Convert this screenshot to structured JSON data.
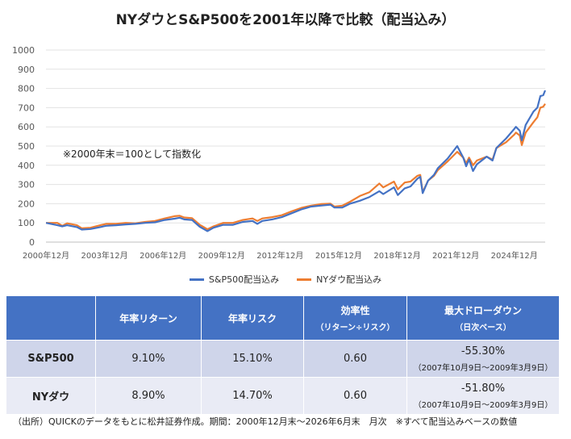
{
  "title": "NYダウとS&P500を2001年以降で比較（配当込み）",
  "note": "※2000年末＝100として指数化",
  "colors": {
    "sp500": "#4472c4",
    "nydow": "#ed7d31",
    "header": "#4472c4"
  },
  "chart_data": {
    "type": "line",
    "title": "NYダウとS&P500を2001年以降で比較（配当込み）",
    "xlabel": "",
    "ylabel": "",
    "ylim": [
      0,
      1000
    ],
    "yticks": [
      0,
      100,
      200,
      300,
      400,
      500,
      600,
      700,
      800,
      900,
      1000
    ],
    "xlim": [
      2000.917,
      2026.5
    ],
    "xticks": [
      {
        "value": 2000.917,
        "label": "2000年12月"
      },
      {
        "value": 2003.917,
        "label": "2003年12月"
      },
      {
        "value": 2006.917,
        "label": "2006年12月"
      },
      {
        "value": 2009.917,
        "label": "2009年12月"
      },
      {
        "value": 2012.917,
        "label": "2012年12月"
      },
      {
        "value": 2015.917,
        "label": "2015年12月"
      },
      {
        "value": 2018.917,
        "label": "2018年12月"
      },
      {
        "value": 2021.917,
        "label": "2021年12月"
      },
      {
        "value": 2024.917,
        "label": "2024年12月"
      }
    ],
    "grid": true,
    "legend_position": "bottom",
    "series": [
      {
        "name": "S&P500配当込み",
        "color": "#4472c4",
        "points": [
          [
            2000.92,
            100
          ],
          [
            2001.5,
            88
          ],
          [
            2001.75,
            82
          ],
          [
            2002.0,
            88
          ],
          [
            2002.5,
            78
          ],
          [
            2002.75,
            65
          ],
          [
            2003.2,
            68
          ],
          [
            2003.7,
            78
          ],
          [
            2004.0,
            85
          ],
          [
            2004.5,
            88
          ],
          [
            2005.0,
            92
          ],
          [
            2005.5,
            95
          ],
          [
            2006.0,
            100
          ],
          [
            2006.5,
            103
          ],
          [
            2007.0,
            115
          ],
          [
            2007.5,
            122
          ],
          [
            2007.77,
            127
          ],
          [
            2008.0,
            118
          ],
          [
            2008.4,
            115
          ],
          [
            2008.8,
            80
          ],
          [
            2009.19,
            57
          ],
          [
            2009.5,
            75
          ],
          [
            2010.0,
            90
          ],
          [
            2010.5,
            90
          ],
          [
            2011.0,
            105
          ],
          [
            2011.5,
            110
          ],
          [
            2011.75,
            95
          ],
          [
            2012.0,
            110
          ],
          [
            2012.5,
            118
          ],
          [
            2013.0,
            130
          ],
          [
            2013.5,
            150
          ],
          [
            2014.0,
            170
          ],
          [
            2014.5,
            185
          ],
          [
            2015.0,
            190
          ],
          [
            2015.5,
            195
          ],
          [
            2015.7,
            180
          ],
          [
            2016.1,
            180
          ],
          [
            2016.5,
            200
          ],
          [
            2017.0,
            215
          ],
          [
            2017.5,
            235
          ],
          [
            2018.0,
            265
          ],
          [
            2018.2,
            250
          ],
          [
            2018.75,
            285
          ],
          [
            2018.95,
            245
          ],
          [
            2019.3,
            280
          ],
          [
            2019.6,
            290
          ],
          [
            2019.95,
            330
          ],
          [
            2020.1,
            340
          ],
          [
            2020.22,
            255
          ],
          [
            2020.5,
            320
          ],
          [
            2020.8,
            350
          ],
          [
            2021.0,
            385
          ],
          [
            2021.5,
            435
          ],
          [
            2021.99,
            500
          ],
          [
            2022.3,
            440
          ],
          [
            2022.45,
            395
          ],
          [
            2022.6,
            430
          ],
          [
            2022.8,
            370
          ],
          [
            2023.0,
            405
          ],
          [
            2023.5,
            445
          ],
          [
            2023.8,
            425
          ],
          [
            2024.0,
            490
          ],
          [
            2024.5,
            540
          ],
          [
            2024.92,
            590
          ],
          [
            2025.0,
            600
          ],
          [
            2025.2,
            580
          ],
          [
            2025.3,
            530
          ],
          [
            2025.5,
            610
          ],
          [
            2025.9,
            680
          ],
          [
            2026.1,
            700
          ],
          [
            2026.25,
            760
          ],
          [
            2026.4,
            765
          ],
          [
            2026.5,
            790
          ]
        ]
      },
      {
        "name": "NYダウ配当込み",
        "color": "#ed7d31",
        "points": [
          [
            2000.92,
            100
          ],
          [
            2001.5,
            100
          ],
          [
            2001.75,
            85
          ],
          [
            2002.0,
            98
          ],
          [
            2002.5,
            88
          ],
          [
            2002.75,
            72
          ],
          [
            2003.2,
            75
          ],
          [
            2003.7,
            88
          ],
          [
            2004.0,
            95
          ],
          [
            2004.5,
            95
          ],
          [
            2005.0,
            100
          ],
          [
            2005.5,
            98
          ],
          [
            2006.0,
            105
          ],
          [
            2006.5,
            110
          ],
          [
            2007.0,
            123
          ],
          [
            2007.5,
            135
          ],
          [
            2007.77,
            137
          ],
          [
            2008.0,
            128
          ],
          [
            2008.4,
            125
          ],
          [
            2008.8,
            90
          ],
          [
            2009.19,
            67
          ],
          [
            2009.5,
            82
          ],
          [
            2010.0,
            100
          ],
          [
            2010.5,
            100
          ],
          [
            2011.0,
            115
          ],
          [
            2011.5,
            123
          ],
          [
            2011.75,
            110
          ],
          [
            2012.0,
            123
          ],
          [
            2012.5,
            130
          ],
          [
            2013.0,
            140
          ],
          [
            2013.5,
            160
          ],
          [
            2014.0,
            178
          ],
          [
            2014.5,
            190
          ],
          [
            2015.0,
            198
          ],
          [
            2015.5,
            200
          ],
          [
            2015.7,
            185
          ],
          [
            2016.1,
            190
          ],
          [
            2016.5,
            210
          ],
          [
            2017.0,
            240
          ],
          [
            2017.5,
            260
          ],
          [
            2018.0,
            305
          ],
          [
            2018.2,
            285
          ],
          [
            2018.75,
            315
          ],
          [
            2018.95,
            275
          ],
          [
            2019.3,
            310
          ],
          [
            2019.6,
            315
          ],
          [
            2019.95,
            345
          ],
          [
            2020.1,
            350
          ],
          [
            2020.22,
            260
          ],
          [
            2020.5,
            320
          ],
          [
            2020.8,
            345
          ],
          [
            2021.0,
            375
          ],
          [
            2021.5,
            420
          ],
          [
            2021.99,
            470
          ],
          [
            2022.3,
            440
          ],
          [
            2022.45,
            410
          ],
          [
            2022.6,
            440
          ],
          [
            2022.8,
            400
          ],
          [
            2023.0,
            425
          ],
          [
            2023.5,
            445
          ],
          [
            2023.8,
            430
          ],
          [
            2024.0,
            490
          ],
          [
            2024.5,
            520
          ],
          [
            2024.92,
            560
          ],
          [
            2025.0,
            570
          ],
          [
            2025.2,
            555
          ],
          [
            2025.3,
            505
          ],
          [
            2025.5,
            570
          ],
          [
            2025.9,
            625
          ],
          [
            2026.1,
            650
          ],
          [
            2026.25,
            700
          ],
          [
            2026.4,
            705
          ],
          [
            2026.5,
            720
          ]
        ]
      }
    ]
  },
  "legend": [
    {
      "label": "S&P500配当込み",
      "color": "#4472c4"
    },
    {
      "label": "NYダウ配当込み",
      "color": "#ed7d31"
    }
  ],
  "table": {
    "headers": {
      "blank": "",
      "annual_return": "年率リターン",
      "annual_risk": "年率リスク",
      "efficiency": "効率性",
      "efficiency_sub": "（リターン÷リスク）",
      "max_drawdown": "最大ドローダウン",
      "max_drawdown_sub": "（日次ベース）"
    },
    "rows": [
      {
        "name": "S&P500",
        "annual_return": "9.10%",
        "annual_risk": "15.10%",
        "efficiency": "0.60",
        "max_drawdown": "-55.30%",
        "drawdown_period": "（2007年10月9日～2009年3月9日）"
      },
      {
        "name": "NYダウ",
        "annual_return": "8.90%",
        "annual_risk": "14.70%",
        "efficiency": "0.60",
        "max_drawdown": "-51.80%",
        "drawdown_period": "（2007年10月9日～2009年3月9日）"
      }
    ]
  },
  "footer": "（出所）QUICKのデータをもとに松井証券作成。期間：2000年12月末～2026年6月末　月次　※すべて配当込みベースの数値"
}
